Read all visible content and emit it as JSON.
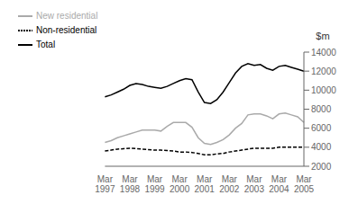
{
  "chart_data": {
    "type": "line",
    "y_label": "$m",
    "categories": [
      "Mar\n1997",
      null,
      null,
      null,
      "Mar\n1998",
      null,
      null,
      null,
      "Mar\n1999",
      null,
      null,
      null,
      "Mar\n2000",
      null,
      null,
      null,
      "Mar\n2001",
      null,
      null,
      null,
      "Mar\n2002",
      null,
      null,
      null,
      "Mar\n2003",
      null,
      null,
      null,
      "Mar\n2004",
      null,
      null,
      null,
      "Mar\n2005"
    ],
    "series": [
      {
        "name": "Total",
        "color": "#000000",
        "line_style": "solid",
        "values": [
          9300,
          9500,
          9800,
          10100,
          10500,
          10700,
          10600,
          10400,
          10300,
          10200,
          10400,
          10700,
          11000,
          11200,
          11100,
          9800,
          8700,
          8600,
          9000,
          9800,
          10800,
          11800,
          12500,
          12800,
          12600,
          12700,
          12300,
          12100,
          12500,
          12600,
          12400,
          12200,
          12000
        ]
      },
      {
        "name": "New residential",
        "color": "#aaaaaa",
        "line_style": "solid",
        "values": [
          4500,
          4700,
          5000,
          5200,
          5400,
          5600,
          5800,
          5800,
          5800,
          5700,
          6200,
          6600,
          6600,
          6600,
          6100,
          5000,
          4400,
          4300,
          4500,
          4800,
          5300,
          6000,
          6500,
          7400,
          7500,
          7500,
          7300,
          7000,
          7500,
          7600,
          7400,
          7200,
          6600
        ]
      },
      {
        "name": "Non-residential",
        "color": "#000000",
        "line_style": "dashed",
        "values": [
          3600,
          3700,
          3800,
          3850,
          3900,
          3850,
          3800,
          3750,
          3700,
          3700,
          3650,
          3600,
          3500,
          3500,
          3450,
          3350,
          3200,
          3200,
          3300,
          3350,
          3500,
          3600,
          3700,
          3800,
          3900,
          3900,
          3900,
          3900,
          4000,
          4000,
          4000,
          4000,
          4000
        ]
      }
    ],
    "ylim": [
      2000,
      14000
    ],
    "yticks": [
      2000,
      4000,
      6000,
      8000,
      10000,
      12000,
      14000
    ],
    "grid": false,
    "legend": "upper left"
  }
}
